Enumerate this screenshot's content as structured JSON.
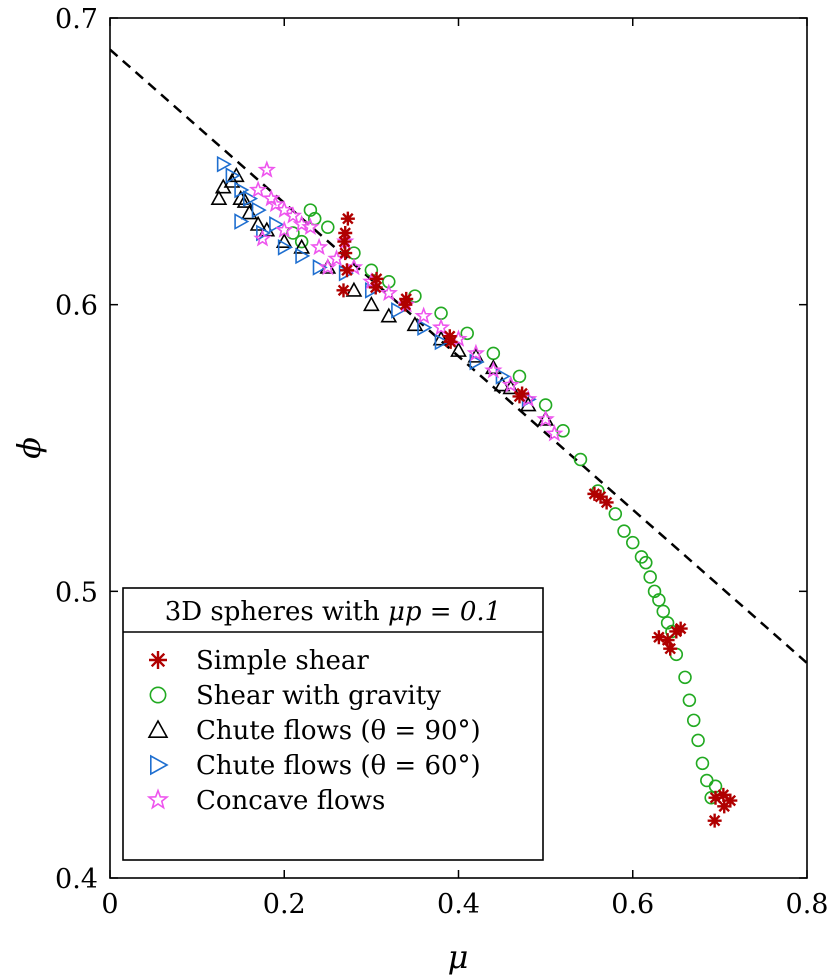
{
  "chart_data": {
    "type": "scatter",
    "title": "",
    "xlabel": "μ",
    "ylabel": "ϕ",
    "xlim": [
      0,
      0.8
    ],
    "ylim": [
      0.4,
      0.7
    ],
    "x_ticks": [
      "0",
      "0.2",
      "0.4",
      "0.6",
      "0.8"
    ],
    "y_ticks": [
      "0.4",
      "0.5",
      "0.6",
      "0.7"
    ],
    "legend": {
      "location": "bottom-left",
      "title_prefix": "3D spheres with ",
      "title_math": "μp = 0.1"
    },
    "reference_line": {
      "name": "Linear fit",
      "style": "dashed",
      "color": "#000000",
      "x": [
        0,
        0.8
      ],
      "y": [
        0.689,
        0.475
      ]
    },
    "series": [
      {
        "name": "Simple shear",
        "marker": "asterisk",
        "color": "#b00000",
        "points": [
          [
            0.27,
            0.618
          ],
          [
            0.27,
            0.625
          ],
          [
            0.272,
            0.612
          ],
          [
            0.268,
            0.605
          ],
          [
            0.273,
            0.63
          ],
          [
            0.269,
            0.622
          ],
          [
            0.306,
            0.609
          ],
          [
            0.305,
            0.606
          ],
          [
            0.34,
            0.602
          ],
          [
            0.339,
            0.6
          ],
          [
            0.39,
            0.589
          ],
          [
            0.391,
            0.587
          ],
          [
            0.47,
            0.568
          ],
          [
            0.473,
            0.569
          ],
          [
            0.556,
            0.534
          ],
          [
            0.563,
            0.533
          ],
          [
            0.57,
            0.531
          ],
          [
            0.63,
            0.484
          ],
          [
            0.64,
            0.483
          ],
          [
            0.65,
            0.486
          ],
          [
            0.643,
            0.48
          ],
          [
            0.655,
            0.487
          ],
          [
            0.695,
            0.428
          ],
          [
            0.704,
            0.429
          ],
          [
            0.712,
            0.427
          ],
          [
            0.694,
            0.42
          ],
          [
            0.705,
            0.425
          ]
        ]
      },
      {
        "name": "Shear with gravity",
        "marker": "circle",
        "color": "#22aa22",
        "points": [
          [
            0.21,
            0.625
          ],
          [
            0.22,
            0.622
          ],
          [
            0.23,
            0.633
          ],
          [
            0.235,
            0.63
          ],
          [
            0.25,
            0.627
          ],
          [
            0.28,
            0.618
          ],
          [
            0.3,
            0.612
          ],
          [
            0.32,
            0.608
          ],
          [
            0.35,
            0.603
          ],
          [
            0.38,
            0.597
          ],
          [
            0.41,
            0.59
          ],
          [
            0.44,
            0.583
          ],
          [
            0.47,
            0.575
          ],
          [
            0.5,
            0.565
          ],
          [
            0.52,
            0.556
          ],
          [
            0.54,
            0.546
          ],
          [
            0.56,
            0.535
          ],
          [
            0.58,
            0.527
          ],
          [
            0.59,
            0.521
          ],
          [
            0.6,
            0.517
          ],
          [
            0.61,
            0.512
          ],
          [
            0.615,
            0.51
          ],
          [
            0.62,
            0.505
          ],
          [
            0.625,
            0.5
          ],
          [
            0.63,
            0.497
          ],
          [
            0.635,
            0.493
          ],
          [
            0.64,
            0.489
          ],
          [
            0.645,
            0.486
          ],
          [
            0.65,
            0.478
          ],
          [
            0.66,
            0.47
          ],
          [
            0.665,
            0.462
          ],
          [
            0.67,
            0.455
          ],
          [
            0.675,
            0.448
          ],
          [
            0.68,
            0.44
          ],
          [
            0.685,
            0.434
          ],
          [
            0.69,
            0.428
          ],
          [
            0.695,
            0.432
          ]
        ]
      },
      {
        "name": "Chute flows (θ = 90°)",
        "marker": "triangle-up",
        "color": "#000000",
        "points": [
          [
            0.125,
            0.637
          ],
          [
            0.13,
            0.641
          ],
          [
            0.14,
            0.643
          ],
          [
            0.145,
            0.645
          ],
          [
            0.15,
            0.637
          ],
          [
            0.155,
            0.636
          ],
          [
            0.16,
            0.632
          ],
          [
            0.17,
            0.628
          ],
          [
            0.18,
            0.626
          ],
          [
            0.2,
            0.622
          ],
          [
            0.22,
            0.62
          ],
          [
            0.25,
            0.613
          ],
          [
            0.28,
            0.605
          ],
          [
            0.3,
            0.6
          ],
          [
            0.32,
            0.596
          ],
          [
            0.35,
            0.593
          ],
          [
            0.38,
            0.588
          ],
          [
            0.4,
            0.584
          ],
          [
            0.42,
            0.582
          ],
          [
            0.44,
            0.578
          ],
          [
            0.45,
            0.572
          ],
          [
            0.46,
            0.571
          ],
          [
            0.48,
            0.565
          ],
          [
            0.5,
            0.56
          ]
        ]
      },
      {
        "name": "Chute flows (θ = 60°)",
        "marker": "triangle-right",
        "color": "#1f6fd0",
        "points": [
          [
            0.13,
            0.649
          ],
          [
            0.14,
            0.645
          ],
          [
            0.15,
            0.64
          ],
          [
            0.16,
            0.637
          ],
          [
            0.17,
            0.633
          ],
          [
            0.15,
            0.629
          ],
          [
            0.175,
            0.625
          ],
          [
            0.19,
            0.628
          ],
          [
            0.2,
            0.62
          ],
          [
            0.22,
            0.617
          ],
          [
            0.24,
            0.613
          ],
          [
            0.27,
            0.611
          ],
          [
            0.3,
            0.605
          ],
          [
            0.33,
            0.598
          ],
          [
            0.36,
            0.592
          ],
          [
            0.38,
            0.587
          ],
          [
            0.42,
            0.58
          ],
          [
            0.45,
            0.575
          ],
          [
            0.48,
            0.567
          ]
        ]
      },
      {
        "name": "Concave flows",
        "marker": "star",
        "color": "#ee55ee",
        "points": [
          [
            0.17,
            0.64
          ],
          [
            0.18,
            0.647
          ],
          [
            0.185,
            0.637
          ],
          [
            0.19,
            0.635
          ],
          [
            0.2,
            0.633
          ],
          [
            0.21,
            0.631
          ],
          [
            0.2,
            0.626
          ],
          [
            0.22,
            0.628
          ],
          [
            0.23,
            0.627
          ],
          [
            0.175,
            0.623
          ],
          [
            0.24,
            0.62
          ],
          [
            0.26,
            0.616
          ],
          [
            0.28,
            0.613
          ],
          [
            0.3,
            0.608
          ],
          [
            0.32,
            0.604
          ],
          [
            0.34,
            0.6
          ],
          [
            0.36,
            0.596
          ],
          [
            0.38,
            0.592
          ],
          [
            0.4,
            0.588
          ],
          [
            0.42,
            0.583
          ],
          [
            0.44,
            0.577
          ],
          [
            0.46,
            0.572
          ],
          [
            0.48,
            0.567
          ],
          [
            0.5,
            0.56
          ],
          [
            0.51,
            0.555
          ],
          [
            0.25,
            0.613
          ],
          [
            0.27,
            0.622
          ]
        ]
      }
    ]
  }
}
